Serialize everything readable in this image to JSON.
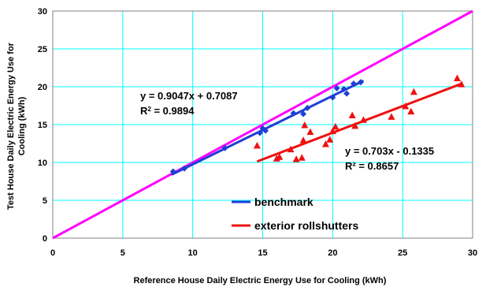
{
  "chart_data": {
    "type": "scatter",
    "xlabel": "Reference House Daily Electric Energy Use for Cooling (kWh)",
    "ylabel": "Test House Daily Electric Energy Use for Cooling (kWh)",
    "xlim": [
      0,
      30
    ],
    "ylim": [
      0,
      30
    ],
    "xticks": [
      0,
      5,
      10,
      15,
      20,
      25,
      30
    ],
    "yticks": [
      0,
      5,
      10,
      15,
      20,
      25,
      30
    ],
    "grid": true,
    "legend_position": "bottom-center",
    "reference_line": {
      "x": [
        0,
        30
      ],
      "y": [
        0,
        30
      ],
      "color": "#ff00ff"
    },
    "series": [
      {
        "name": "benchmark",
        "marker": "diamond",
        "color": "#1f3fd6",
        "points": [
          [
            8.6,
            8.8
          ],
          [
            9.4,
            9.2
          ],
          [
            12.3,
            11.9
          ],
          [
            14.8,
            13.9
          ],
          [
            15.0,
            14.5
          ],
          [
            15.2,
            14.2
          ],
          [
            17.2,
            16.5
          ],
          [
            17.9,
            16.4
          ],
          [
            18.2,
            17.2
          ],
          [
            20.0,
            18.6
          ],
          [
            20.3,
            19.8
          ],
          [
            20.8,
            19.7
          ],
          [
            21.0,
            19.1
          ],
          [
            21.5,
            20.4
          ],
          [
            22.0,
            20.6
          ]
        ],
        "trendline": {
          "x": [
            8.5,
            22.2
          ],
          "equation": "y = 0.9047x + 0.7087",
          "r2": "R2 = 0.9894"
        }
      },
      {
        "name": "exterior rollshutters",
        "marker": "triangle",
        "color": "#ee1111",
        "points": [
          [
            14.6,
            12.2
          ],
          [
            16.0,
            10.5
          ],
          [
            16.2,
            10.7
          ],
          [
            17.0,
            11.7
          ],
          [
            17.4,
            10.4
          ],
          [
            17.8,
            10.6
          ],
          [
            17.9,
            12.9
          ],
          [
            18.0,
            14.9
          ],
          [
            18.4,
            14.0
          ],
          [
            19.5,
            12.4
          ],
          [
            19.8,
            13.0
          ],
          [
            20.0,
            14.1
          ],
          [
            20.2,
            14.7
          ],
          [
            21.4,
            16.2
          ],
          [
            21.6,
            14.8
          ],
          [
            22.2,
            15.6
          ],
          [
            24.2,
            16.0
          ],
          [
            25.2,
            17.4
          ],
          [
            25.6,
            16.7
          ],
          [
            25.8,
            19.3
          ],
          [
            28.9,
            21.1
          ],
          [
            29.2,
            20.3
          ]
        ],
        "trendline": {
          "x": [
            14.6,
            29.3
          ],
          "equation": "y = 0.703x - 0.1335",
          "r2": "R² = 0.8657"
        }
      }
    ]
  },
  "colors": {
    "grid": "#00ffff",
    "plot_border": "#808080",
    "background": "#ffffff"
  }
}
